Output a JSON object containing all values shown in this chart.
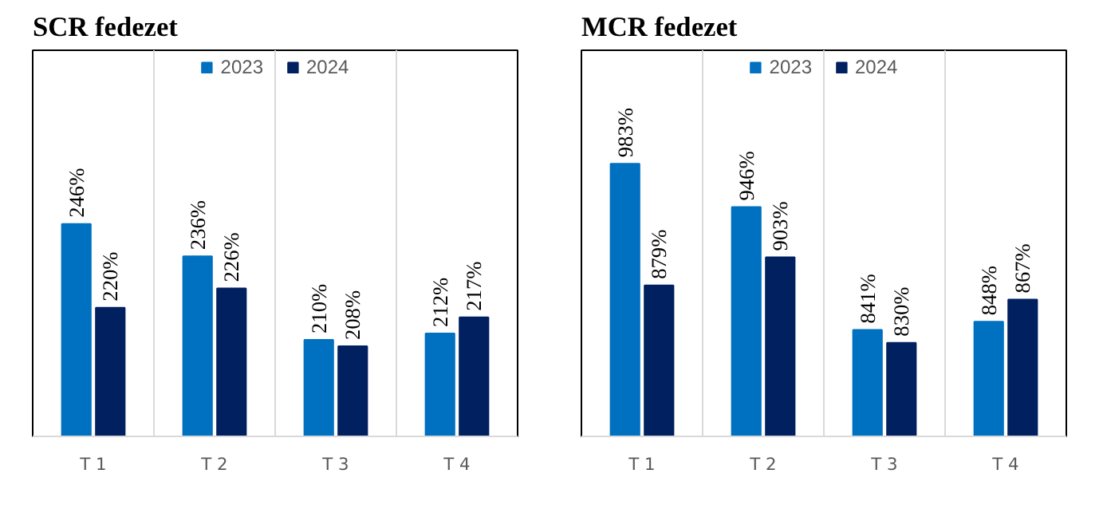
{
  "chart_data": [
    {
      "type": "bar",
      "title": "SCR fedezet",
      "categories": [
        "T 1",
        "T 2",
        "T 3",
        "T 4"
      ],
      "ylim": [
        180,
        300
      ],
      "tick_labels": "x",
      "grid": "x",
      "legend": "top",
      "data_labels": true,
      "series": [
        {
          "name": "2023",
          "color": "#0070c0",
          "values": [
            246,
            236,
            210,
            212
          ],
          "value_labels": [
            "246%",
            "236%",
            "210%",
            "212%"
          ]
        },
        {
          "name": "2024",
          "color": "#002060",
          "values": [
            220,
            226,
            208,
            217
          ],
          "value_labels": [
            "220%",
            "226%",
            "208%",
            "217%"
          ]
        }
      ]
    },
    {
      "type": "bar",
      "title": "MCR fedezet",
      "categories": [
        "T 1",
        "T 2",
        "T 3",
        "T 4"
      ],
      "ylim": [
        750,
        1080
      ],
      "tick_labels": "x",
      "grid": "x",
      "legend": "top",
      "data_labels": true,
      "series": [
        {
          "name": "2023",
          "color": "#0070c0",
          "values": [
            983,
            946,
            841,
            848
          ],
          "value_labels": [
            "983%",
            "946%",
            "841%",
            "848%"
          ]
        },
        {
          "name": "2024",
          "color": "#002060",
          "values": [
            879,
            903,
            830,
            867
          ],
          "value_labels": [
            "879%",
            "903%",
            "830%",
            "867%"
          ]
        }
      ]
    }
  ]
}
